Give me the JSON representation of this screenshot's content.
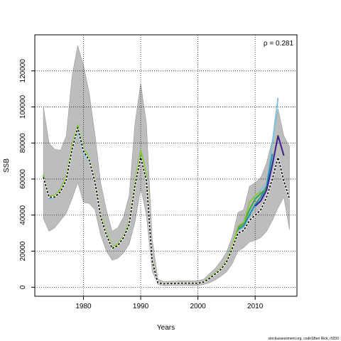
{
  "chart_data": {
    "type": "line",
    "title": "",
    "xlabel": "Years",
    "ylabel": "SSB",
    "xlim": [
      1971.5,
      2017.3
    ],
    "ylim": [
      -5000,
      140000
    ],
    "x_ticks": [
      1980,
      1990,
      2000,
      2010
    ],
    "y_ticks": [
      0,
      20000,
      40000,
      60000,
      80000,
      100000,
      120000
    ],
    "grid": true,
    "annotation": "ρ = 0.281",
    "footer": "stockassessment.org, codeSBen Rick, r9250",
    "colors": {
      "band": "#bdbdbd",
      "band_edge": "#8c8c8c",
      "retro_1": "#7ec3dd",
      "retro_2": "#2a8bb0",
      "retro_3": "#3aa64a",
      "retro_4": "#8cc63f",
      "retro_5": "#3b1f8c",
      "base": "#000000"
    },
    "confidence_band": {
      "x": [
        1973,
        1974,
        1975,
        1976,
        1977,
        1978,
        1979,
        1980,
        1981,
        1982,
        1983,
        1984,
        1985,
        1986,
        1987,
        1988,
        1989,
        1990,
        1991,
        1992,
        1993,
        1994,
        1995,
        1996,
        1997,
        1998,
        1999,
        2000,
        2001,
        2002,
        2003,
        2004,
        2005,
        2006,
        2007,
        2008,
        2009,
        2010,
        2011,
        2012,
        2013,
        2014,
        2015,
        2016
      ],
      "lower": [
        38000,
        31000,
        33000,
        37000,
        41000,
        49000,
        58000,
        47000,
        46500,
        43000,
        29000,
        20000,
        15000,
        16000,
        19000,
        24000,
        36000,
        55000,
        40000,
        9000,
        1500,
        900,
        1000,
        1100,
        1100,
        1100,
        1000,
        1000,
        1500,
        2500,
        4000,
        6000,
        8500,
        13000,
        20000,
        22000,
        25000,
        26000,
        27500,
        31000,
        37000,
        44000,
        50000,
        32000
      ],
      "upper": [
        100000,
        80000,
        76500,
        76000,
        84000,
        117000,
        134000,
        123000,
        108000,
        85000,
        58000,
        43000,
        31000,
        33000,
        39000,
        51000,
        91000,
        113000,
        91000,
        27000,
        4500,
        3200,
        3300,
        3400,
        3600,
        3500,
        3500,
        3500,
        4500,
        7500,
        10500,
        14500,
        19500,
        28000,
        41500,
        43000,
        56000,
        58000,
        61000,
        69000,
        82000,
        99000,
        84000,
        78000
      ]
    },
    "series": [
      {
        "key": "retro_1",
        "x": [
          1973,
          1974,
          1975,
          1976,
          1977,
          1978,
          1979,
          1980,
          1981,
          1982,
          1983,
          1984,
          1985,
          1986,
          1987,
          1988,
          1989,
          1990,
          1991,
          1992,
          1993,
          1994,
          1995,
          1996,
          1997,
          1998,
          1999,
          2000,
          2001,
          2002,
          2003,
          2004,
          2005,
          2006,
          2007,
          2008,
          2009,
          2010,
          2011,
          2012,
          2013,
          2014
        ],
        "values": [
          61000,
          49000,
          49500,
          53000,
          60000,
          76000,
          87000,
          74000,
          70000,
          58000,
          39000,
          29000,
          21500,
          23000,
          27500,
          35000,
          56000,
          73000,
          60000,
          15000,
          2500,
          1900,
          2000,
          2100,
          2300,
          2200,
          2200,
          2300,
          3000,
          5000,
          7500,
          10000,
          14000,
          22000,
          33000,
          35000,
          42000,
          50000,
          54000,
          58000,
          80000,
          105000
        ]
      },
      {
        "key": "retro_2",
        "x": [
          1973,
          1974,
          1975,
          1976,
          1977,
          1978,
          1979,
          1980,
          1981,
          1982,
          1983,
          1984,
          1985,
          1986,
          1987,
          1988,
          1989,
          1990,
          1991,
          1992,
          1993,
          1994,
          1995,
          1996,
          1997,
          1998,
          1999,
          2000,
          2001,
          2002,
          2003,
          2004,
          2005,
          2006,
          2007,
          2008,
          2009,
          2010,
          2011,
          2012,
          2013
        ],
        "values": [
          61500,
          49500,
          50000,
          53500,
          60500,
          77000,
          88000,
          75000,
          70500,
          58500,
          39500,
          29500,
          21800,
          23200,
          27800,
          35500,
          57000,
          74000,
          61000,
          15200,
          2500,
          1900,
          2000,
          2100,
          2300,
          2200,
          2200,
          2300,
          3000,
          5000,
          7500,
          10000,
          14000,
          22000,
          32000,
          34000,
          40000,
          46000,
          50000,
          56000,
          74000
        ]
      },
      {
        "key": "retro_3",
        "x": [
          1973,
          1974,
          1975,
          1976,
          1977,
          1978,
          1979,
          1980,
          1981,
          1982,
          1983,
          1984,
          1985,
          1986,
          1987,
          1988,
          1989,
          1990,
          1991,
          1992,
          1993,
          1994,
          1995,
          1996,
          1997,
          1998,
          1999,
          2000,
          2001,
          2002,
          2003,
          2004,
          2005,
          2006,
          2007,
          2008,
          2009,
          2010,
          2011,
          2012
        ],
        "values": [
          62000,
          50000,
          50500,
          54000,
          61000,
          78000,
          89000,
          76000,
          71000,
          59000,
          40000,
          30000,
          22000,
          23500,
          28000,
          36000,
          58000,
          75000,
          61500,
          15500,
          2600,
          2000,
          2100,
          2200,
          2400,
          2300,
          2300,
          2400,
          3100,
          5200,
          7700,
          10200,
          14500,
          22500,
          33000,
          35500,
          43000,
          49000,
          52000,
          55000
        ]
      },
      {
        "key": "retro_4",
        "x": [
          1973,
          1974,
          1975,
          1976,
          1977,
          1978,
          1979,
          1980,
          1981,
          1982,
          1983,
          1984,
          1985,
          1986,
          1987,
          1988,
          1989,
          1990,
          1991,
          1992,
          1993,
          1994,
          1995,
          1996,
          1997,
          1998,
          1999,
          2000,
          2001,
          2002,
          2003,
          2004,
          2005,
          2006,
          2007,
          2008,
          2009,
          2010,
          2011
        ],
        "values": [
          62500,
          50500,
          51000,
          54500,
          61500,
          79000,
          90000,
          77000,
          71500,
          59500,
          40500,
          30500,
          22300,
          24000,
          28500,
          36500,
          59000,
          76000,
          62000,
          15800,
          2700,
          2100,
          2200,
          2300,
          2500,
          2400,
          2400,
          2500,
          3200,
          5400,
          8000,
          10500,
          15000,
          23000,
          34000,
          36000,
          47000,
          51000,
          53000
        ]
      },
      {
        "key": "retro_5",
        "x": [
          2010,
          2011,
          2012,
          2013,
          2014,
          2015
        ],
        "values": [
          45000,
          48000,
          54000,
          68000,
          84000,
          73000
        ]
      },
      {
        "key": "base",
        "x": [
          1973,
          1974,
          1975,
          1976,
          1977,
          1978,
          1979,
          1980,
          1981,
          1982,
          1983,
          1984,
          1985,
          1986,
          1987,
          1988,
          1989,
          1990,
          1991,
          1992,
          1993,
          1994,
          1995,
          1996,
          1997,
          1998,
          1999,
          2000,
          2001,
          2002,
          2003,
          2004,
          2005,
          2006,
          2007,
          2008,
          2009,
          2010,
          2011,
          2012,
          2013,
          2014,
          2015,
          2016
        ],
        "values": [
          61000,
          50000,
          50000,
          53000,
          59500,
          76500,
          88500,
          75500,
          70500,
          58500,
          39000,
          29000,
          21500,
          23000,
          27500,
          35000,
          56500,
          72000,
          59000,
          14500,
          2500,
          1900,
          2000,
          2100,
          2200,
          2200,
          2200,
          2200,
          2900,
          4800,
          7300,
          9800,
          14000,
          21500,
          30000,
          31500,
          37000,
          40000,
          43000,
          50000,
          60000,
          72000,
          59000,
          49000
        ]
      }
    ]
  }
}
